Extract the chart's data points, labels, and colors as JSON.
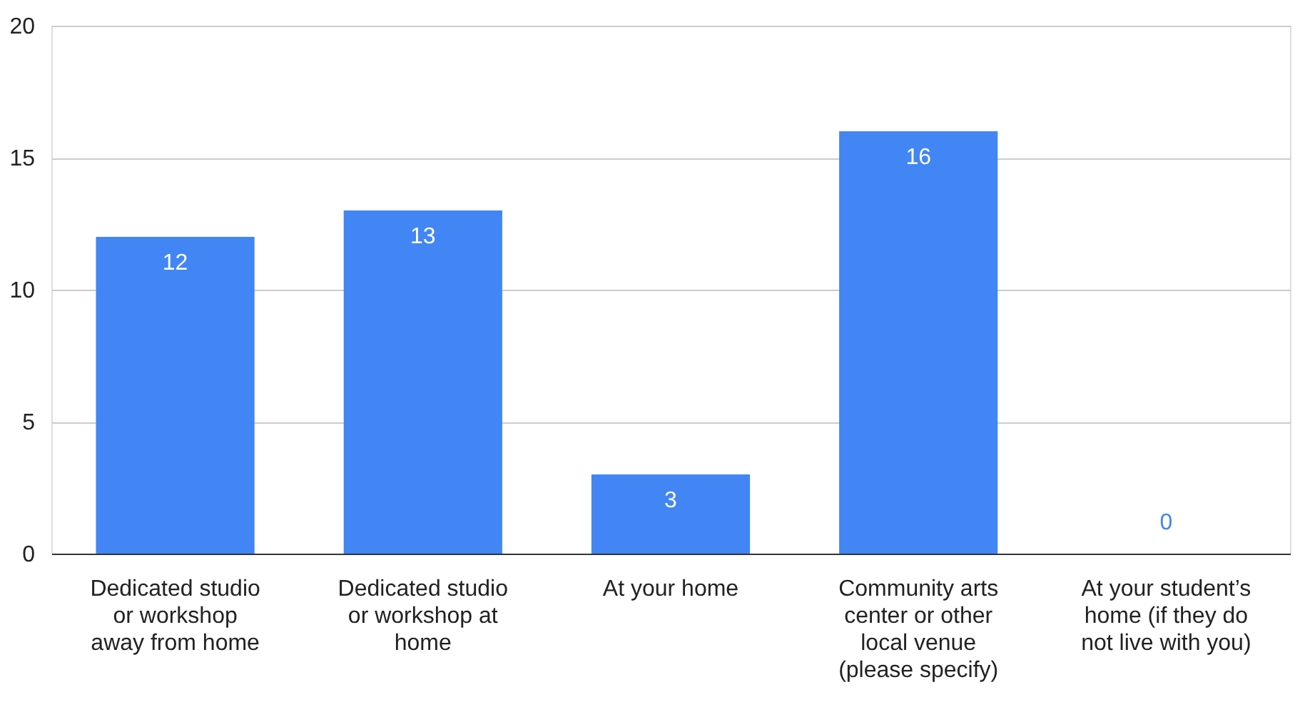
{
  "chart_data": {
    "type": "bar",
    "categories": [
      "Dedicated studio or workshop away from home",
      "Dedicated studio or workshop at home",
      "At your home",
      "Community arts center or other local venue (please specify)",
      "At your student’s home (if they do not live with you)"
    ],
    "values": [
      12,
      13,
      3,
      16,
      0
    ],
    "color": "#4285f4",
    "ylim": [
      0,
      20
    ],
    "yticks": [
      0,
      5,
      10,
      15,
      20
    ],
    "grid": "y",
    "data_labels": true
  }
}
